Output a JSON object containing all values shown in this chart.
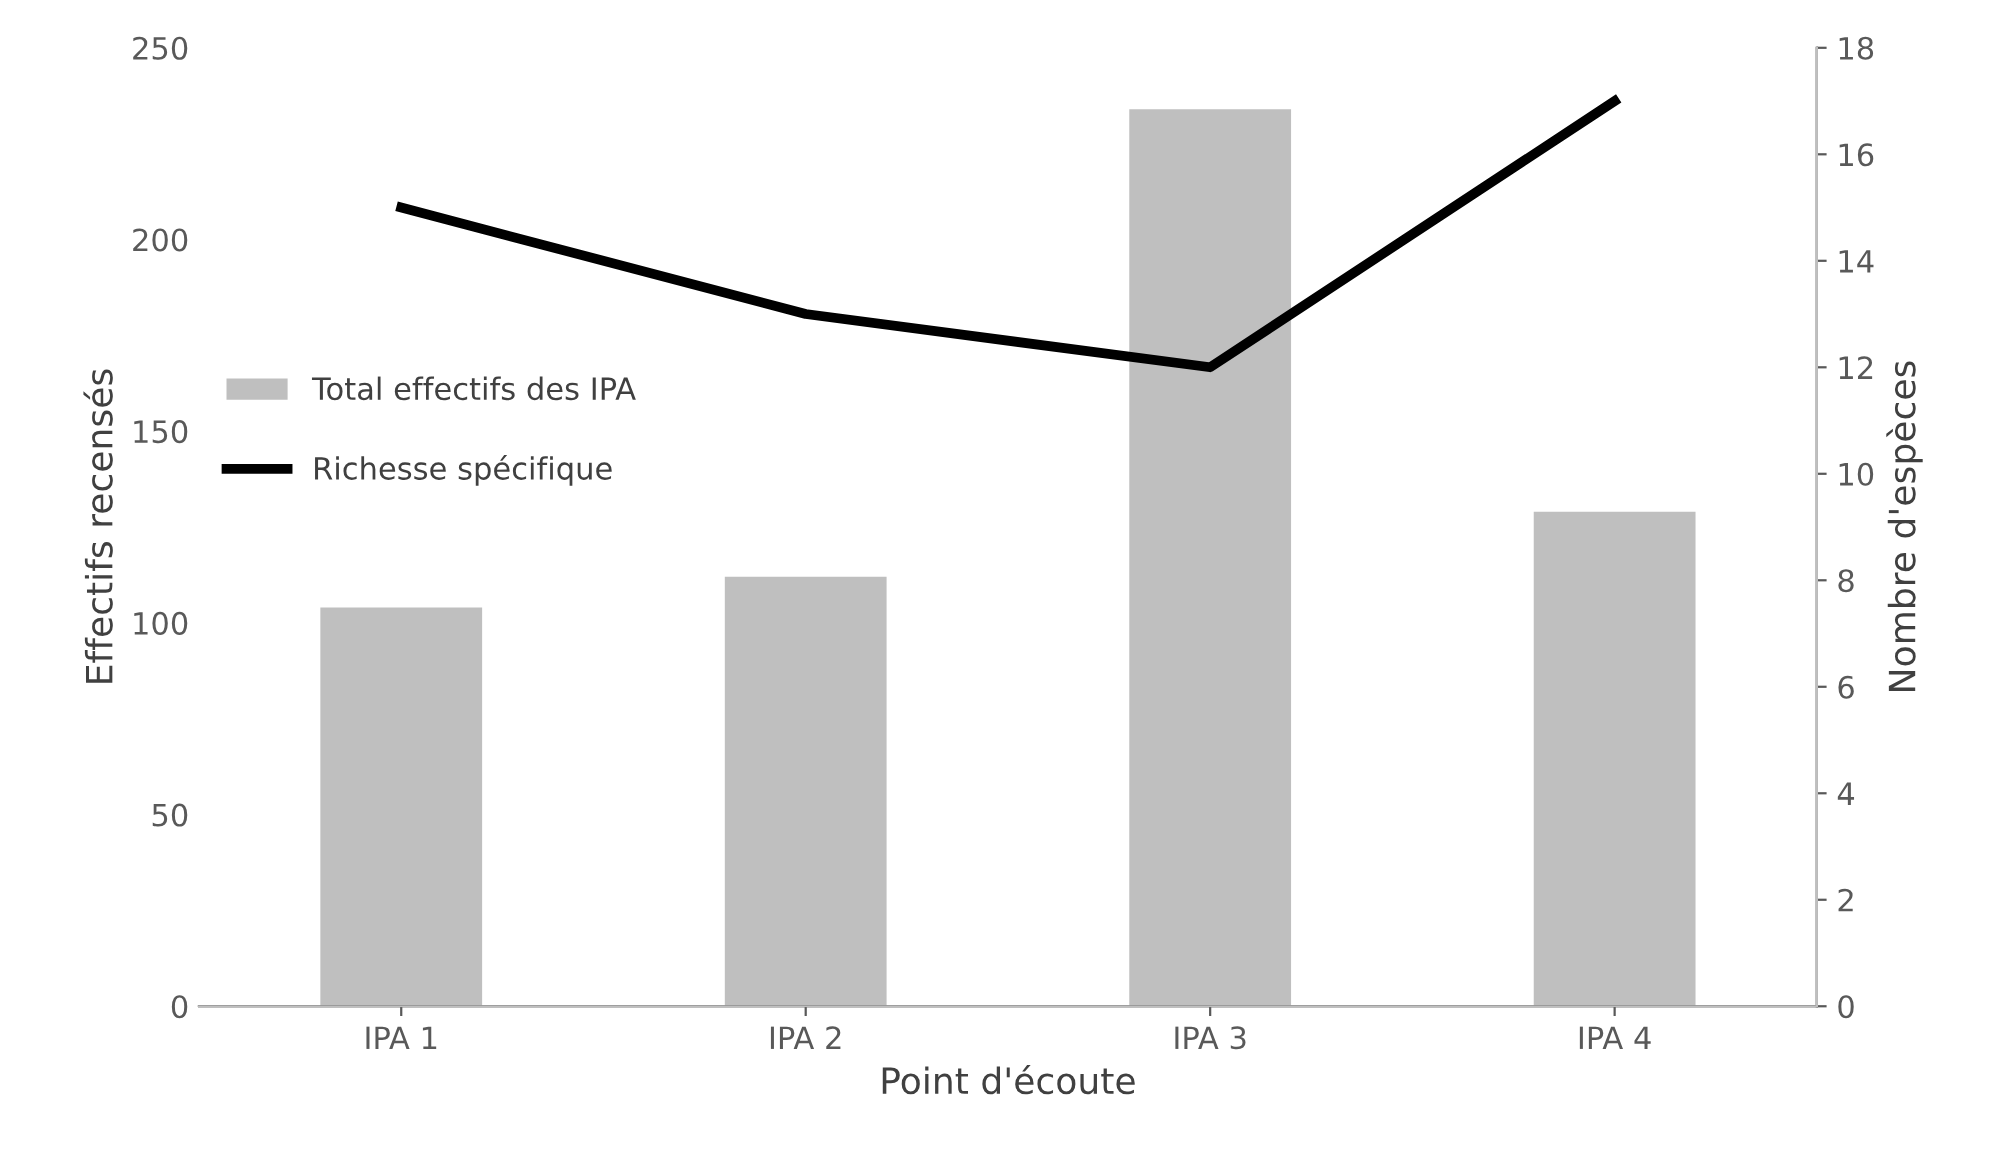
{
  "chart_data": {
    "type": "bar",
    "categories": [
      "IPA 1",
      "IPA 2",
      "IPA 3",
      "IPA 4"
    ],
    "xlabel": "Point d'écoute",
    "ylabel": "Effectifs recensés",
    "y2label": "Nombre d'espèces",
    "series": [
      {
        "name": "Total effectifs des IPA",
        "color": "#bfbfbf",
        "values": [
          104,
          112,
          234,
          129
        ]
      },
      {
        "name": "Richesse spécifique",
        "type": "line",
        "axis": "y2",
        "color": "#000000",
        "values": [
          15,
          13,
          12,
          17
        ]
      }
    ],
    "ylim": [
      0,
      250
    ],
    "yticks": [
      0,
      50,
      100,
      150,
      200,
      250
    ],
    "y2lim": [
      0,
      18
    ],
    "y2ticks": [
      0,
      2,
      4,
      6,
      8,
      10,
      12,
      14,
      16,
      18
    ],
    "grid": false,
    "legend": "left",
    "marker": "none",
    "line_style": "solid"
  }
}
